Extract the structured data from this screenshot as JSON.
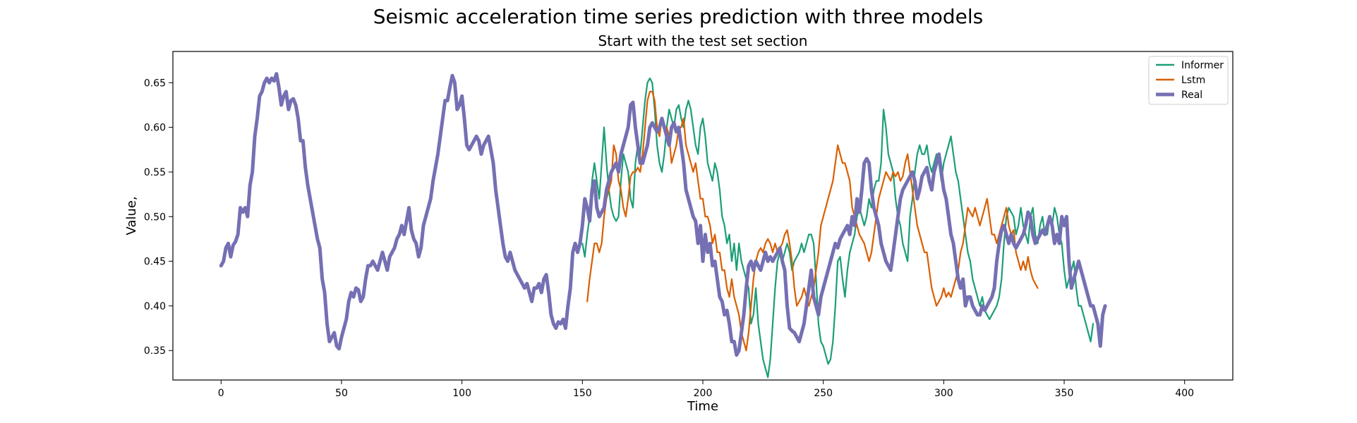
{
  "chart_data": {
    "type": "line",
    "title": "Seismic acceleration time series prediction with three models",
    "subtitle": "Start with the test set section",
    "xlabel": "Time",
    "ylabel": "Value,",
    "xlim": [
      -20,
      420
    ],
    "ylim": [
      0.317,
      0.685
    ],
    "xticks": [
      0,
      50,
      100,
      150,
      200,
      250,
      300,
      350,
      400
    ],
    "yticks": [
      0.35,
      0.4,
      0.45,
      0.5,
      0.55,
      0.6,
      0.65
    ],
    "xtick_labels": [
      "0",
      "50",
      "100",
      "150",
      "200",
      "250",
      "300",
      "350",
      "400"
    ],
    "ytick_labels": [
      "0.35",
      "0.40",
      "0.45",
      "0.50",
      "0.55",
      "0.60",
      "0.65"
    ],
    "grid": false,
    "legend_position": "top-right",
    "series": [
      {
        "name": "Informer",
        "color": "#1b9e77",
        "x_start": 150,
        "values": [
          0.47,
          0.455,
          0.48,
          0.5,
          0.54,
          0.56,
          0.54,
          0.52,
          0.56,
          0.6,
          0.56,
          0.53,
          0.51,
          0.5,
          0.495,
          0.5,
          0.54,
          0.57,
          0.56,
          0.55,
          0.52,
          0.51,
          0.56,
          0.58,
          0.57,
          0.6,
          0.63,
          0.65,
          0.655,
          0.65,
          0.62,
          0.58,
          0.56,
          0.55,
          0.57,
          0.6,
          0.62,
          0.61,
          0.6,
          0.62,
          0.625,
          0.61,
          0.6,
          0.62,
          0.63,
          0.62,
          0.6,
          0.58,
          0.57,
          0.6,
          0.61,
          0.59,
          0.56,
          0.55,
          0.54,
          0.56,
          0.55,
          0.53,
          0.5,
          0.49,
          0.47,
          0.48,
          0.45,
          0.47,
          0.44,
          0.47,
          0.45,
          0.44,
          0.43,
          0.42,
          0.38,
          0.39,
          0.42,
          0.38,
          0.36,
          0.34,
          0.33,
          0.32,
          0.34,
          0.38,
          0.42,
          0.45,
          0.46,
          0.45,
          0.46,
          0.47,
          0.46,
          0.44,
          0.45,
          0.455,
          0.46,
          0.47,
          0.46,
          0.47,
          0.48,
          0.48,
          0.47,
          0.43,
          0.38,
          0.36,
          0.355,
          0.345,
          0.335,
          0.34,
          0.36,
          0.4,
          0.45,
          0.455,
          0.43,
          0.41,
          0.44,
          0.46,
          0.47,
          0.48,
          0.5,
          0.51,
          0.5,
          0.49,
          0.5,
          0.52,
          0.51,
          0.53,
          0.54,
          0.54,
          0.56,
          0.62,
          0.6,
          0.57,
          0.56,
          0.55,
          0.52,
          0.5,
          0.49,
          0.47,
          0.46,
          0.45,
          0.5,
          0.52,
          0.55,
          0.57,
          0.58,
          0.57,
          0.57,
          0.58,
          0.56,
          0.55,
          0.56,
          0.57,
          0.56,
          0.54,
          0.56,
          0.57,
          0.58,
          0.59,
          0.57,
          0.55,
          0.54,
          0.52,
          0.5,
          0.48,
          0.46,
          0.45,
          0.43,
          0.42,
          0.41,
          0.4,
          0.41,
          0.395,
          0.39,
          0.385,
          0.39,
          0.395,
          0.4,
          0.41,
          0.43,
          0.47,
          0.5,
          0.51,
          0.505,
          0.5,
          0.48,
          0.49,
          0.51,
          0.49,
          0.48,
          0.47,
          0.5,
          0.51,
          0.48,
          0.47,
          0.49,
          0.5,
          0.48,
          0.48,
          0.5,
          0.49,
          0.51,
          0.5,
          0.48,
          0.47,
          0.44,
          0.42,
          0.43,
          0.44,
          0.45,
          0.42,
          0.4,
          0.4,
          0.39,
          0.38,
          0.37,
          0.36,
          0.38
        ]
      },
      {
        "name": "Lstm",
        "color": "#d95f02",
        "x_start": 152,
        "values": [
          0.405,
          0.43,
          0.45,
          0.47,
          0.47,
          0.46,
          0.47,
          0.5,
          0.52,
          0.53,
          0.54,
          0.58,
          0.57,
          0.54,
          0.53,
          0.51,
          0.5,
          0.52,
          0.545,
          0.55,
          0.55,
          0.555,
          0.55,
          0.57,
          0.6,
          0.63,
          0.64,
          0.64,
          0.63,
          0.6,
          0.59,
          0.61,
          0.6,
          0.6,
          0.59,
          0.56,
          0.57,
          0.58,
          0.6,
          0.6,
          0.61,
          0.58,
          0.57,
          0.56,
          0.55,
          0.56,
          0.54,
          0.52,
          0.52,
          0.5,
          0.5,
          0.49,
          0.47,
          0.48,
          0.46,
          0.46,
          0.44,
          0.44,
          0.42,
          0.41,
          0.43,
          0.41,
          0.4,
          0.39,
          0.37,
          0.36,
          0.35,
          0.37,
          0.4,
          0.43,
          0.45,
          0.46,
          0.465,
          0.46,
          0.47,
          0.475,
          0.47,
          0.46,
          0.47,
          0.46,
          0.465,
          0.47,
          0.48,
          0.485,
          0.47,
          0.45,
          0.42,
          0.4,
          0.405,
          0.41,
          0.42,
          0.41,
          0.4,
          0.41,
          0.42,
          0.44,
          0.46,
          0.49,
          0.5,
          0.51,
          0.52,
          0.53,
          0.54,
          0.56,
          0.58,
          0.57,
          0.56,
          0.56,
          0.55,
          0.54,
          0.51,
          0.5,
          0.49,
          0.48,
          0.475,
          0.47,
          0.46,
          0.45,
          0.46,
          0.48,
          0.5,
          0.52,
          0.53,
          0.54,
          0.55,
          0.545,
          0.54,
          0.55,
          0.545,
          0.55,
          0.54,
          0.545,
          0.56,
          0.57,
          0.55,
          0.53,
          0.51,
          0.49,
          0.48,
          0.47,
          0.46,
          0.46,
          0.44,
          0.42,
          0.41,
          0.4,
          0.405,
          0.41,
          0.42,
          0.41,
          0.415,
          0.41,
          0.42,
          0.43,
          0.44,
          0.46,
          0.47,
          0.49,
          0.51,
          0.505,
          0.5,
          0.51,
          0.5,
          0.49,
          0.5,
          0.51,
          0.52,
          0.5,
          0.48,
          0.48,
          0.47,
          0.48,
          0.49,
          0.5,
          0.51,
          0.49,
          0.48,
          0.485,
          0.46,
          0.45,
          0.44,
          0.45,
          0.44,
          0.455,
          0.44,
          0.43,
          0.425,
          0.42
        ]
      },
      {
        "name": "Real",
        "color": "#7570b3",
        "x_start": 0,
        "values": [
          0.445,
          0.45,
          0.465,
          0.47,
          0.455,
          0.468,
          0.472,
          0.48,
          0.51,
          0.505,
          0.51,
          0.5,
          0.535,
          0.55,
          0.59,
          0.61,
          0.635,
          0.64,
          0.65,
          0.655,
          0.65,
          0.655,
          0.652,
          0.66,
          0.645,
          0.625,
          0.635,
          0.64,
          0.62,
          0.63,
          0.632,
          0.625,
          0.61,
          0.585,
          0.585,
          0.555,
          0.535,
          0.52,
          0.505,
          0.49,
          0.475,
          0.465,
          0.43,
          0.415,
          0.38,
          0.36,
          0.365,
          0.37,
          0.355,
          0.352,
          0.365,
          0.375,
          0.385,
          0.405,
          0.415,
          0.41,
          0.42,
          0.418,
          0.405,
          0.41,
          0.43,
          0.445,
          0.445,
          0.45,
          0.445,
          0.44,
          0.45,
          0.46,
          0.45,
          0.44,
          0.455,
          0.46,
          0.465,
          0.475,
          0.48,
          0.49,
          0.48,
          0.495,
          0.51,
          0.485,
          0.475,
          0.47,
          0.455,
          0.465,
          0.49,
          0.5,
          0.51,
          0.52,
          0.54,
          0.555,
          0.57,
          0.59,
          0.61,
          0.63,
          0.63,
          0.645,
          0.658,
          0.65,
          0.62,
          0.625,
          0.635,
          0.61,
          0.58,
          0.575,
          0.58,
          0.585,
          0.59,
          0.585,
          0.57,
          0.58,
          0.585,
          0.59,
          0.575,
          0.56,
          0.53,
          0.51,
          0.49,
          0.47,
          0.455,
          0.45,
          0.46,
          0.45,
          0.44,
          0.435,
          0.43,
          0.425,
          0.42,
          0.425,
          0.415,
          0.405,
          0.42,
          0.42,
          0.425,
          0.415,
          0.43,
          0.435,
          0.415,
          0.39,
          0.38,
          0.375,
          0.382,
          0.38,
          0.385,
          0.375,
          0.4,
          0.42,
          0.46,
          0.47,
          0.46,
          0.47,
          0.49,
          0.52,
          0.51,
          0.495,
          0.53,
          0.54,
          0.51,
          0.5,
          0.505,
          0.51,
          0.53,
          0.54,
          0.55,
          0.555,
          0.56,
          0.55,
          0.57,
          0.58,
          0.59,
          0.6,
          0.625,
          0.628,
          0.6,
          0.58,
          0.56,
          0.56,
          0.57,
          0.58,
          0.6,
          0.605,
          0.6,
          0.595,
          0.6,
          0.61,
          0.6,
          0.59,
          0.58,
          0.6,
          0.605,
          0.595,
          0.6,
          0.58,
          0.56,
          0.53,
          0.52,
          0.51,
          0.5,
          0.495,
          0.47,
          0.49,
          0.45,
          0.48,
          0.46,
          0.47,
          0.445,
          0.45,
          0.43,
          0.41,
          0.405,
          0.39,
          0.395,
          0.38,
          0.36,
          0.36,
          0.345,
          0.35,
          0.37,
          0.39,
          0.42,
          0.445,
          0.45,
          0.44,
          0.45,
          0.445,
          0.44,
          0.45,
          0.46,
          0.45,
          0.455,
          0.45,
          0.455,
          0.46,
          0.465,
          0.45,
          0.44,
          0.4,
          0.375,
          0.372,
          0.37,
          0.365,
          0.36,
          0.37,
          0.38,
          0.4,
          0.42,
          0.44,
          0.41,
          0.4,
          0.39,
          0.41,
          0.42,
          0.43,
          0.44,
          0.45,
          0.46,
          0.47,
          0.465,
          0.475,
          0.48,
          0.485,
          0.49,
          0.48,
          0.5,
          0.49,
          0.52,
          0.505,
          0.53,
          0.56,
          0.565,
          0.56,
          0.53,
          0.51,
          0.5,
          0.49,
          0.47,
          0.46,
          0.45,
          0.445,
          0.44,
          0.46,
          0.48,
          0.5,
          0.52,
          0.53,
          0.535,
          0.54,
          0.545,
          0.55,
          0.54,
          0.52,
          0.53,
          0.545,
          0.55,
          0.555,
          0.54,
          0.53,
          0.55,
          0.56,
          0.57,
          0.55,
          0.53,
          0.52,
          0.5,
          0.48,
          0.47,
          0.45,
          0.43,
          0.42,
          0.43,
          0.4,
          0.41,
          0.41,
          0.4,
          0.395,
          0.39,
          0.39,
          0.4,
          0.395,
          0.4,
          0.405,
          0.41,
          0.42,
          0.45,
          0.47,
          0.485,
          0.49,
          0.48,
          0.47,
          0.48,
          0.47,
          0.465,
          0.47,
          0.475,
          0.48,
          0.49,
          0.505,
          0.5,
          0.48,
          0.47,
          0.475,
          0.48,
          0.485,
          0.48,
          0.49,
          0.5,
          0.49,
          0.47,
          0.48,
          0.47,
          0.5,
          0.49,
          0.5,
          0.45,
          0.42,
          0.43,
          0.44,
          0.45,
          0.44,
          0.43,
          0.42,
          0.41,
          0.4,
          0.4,
          0.39,
          0.38,
          0.355,
          0.39,
          0.4
        ]
      }
    ]
  }
}
